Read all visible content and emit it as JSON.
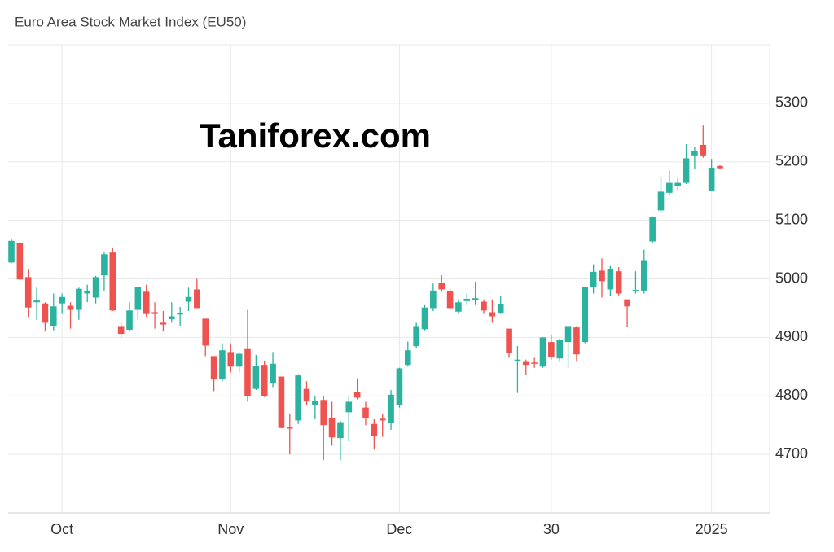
{
  "chart_data": {
    "type": "candlestick",
    "title": "Euro Area Stock Market Index (EU50)",
    "annotation": "Taniforex.com",
    "categories": [
      null,
      null,
      null,
      null,
      null,
      null,
      "Oct",
      null,
      null,
      null,
      null,
      null,
      null,
      null,
      null,
      null,
      null,
      null,
      null,
      null,
      null,
      null,
      null,
      null,
      null,
      null,
      "Nov",
      null,
      null,
      null,
      null,
      null,
      null,
      null,
      null,
      null,
      null,
      null,
      null,
      null,
      null,
      null,
      null,
      null,
      null,
      null,
      "Dec",
      null,
      null,
      null,
      null,
      null,
      null,
      null,
      null,
      null,
      null,
      null,
      null,
      null,
      null,
      null,
      null,
      null,
      "30",
      null,
      null,
      null,
      null,
      null,
      null,
      null,
      null,
      null,
      null,
      null,
      null,
      null,
      null,
      null,
      null,
      null,
      null,
      "2025",
      null
    ],
    "open": [
      5028,
      5061,
      5003,
      4960,
      4958,
      4920,
      4958,
      4954,
      4947,
      4975,
      4968,
      5006,
      5045,
      4918,
      4913,
      4947,
      4978,
      4943,
      4925,
      4931,
      4939,
      4961,
      4982,
      4932,
      4868,
      4828,
      4875,
      4850,
      4880,
      4812,
      4853,
      4822,
      4833,
      4746,
      4758,
      4812,
      4785,
      4793,
      4762,
      4728,
      4772,
      4806,
      4780,
      4752,
      4761,
      4753,
      4784,
      4853,
      4885,
      4914,
      4950,
      4993,
      4979,
      4944,
      4962,
      4964,
      4961,
      4943,
      4942,
      4915,
      4860,
      4858,
      4857,
      4850,
      4892,
      4864,
      4892,
      4917,
      4892,
      4986,
      5014,
      4982,
      5013,
      4965,
      4979,
      4980,
      5064,
      5117,
      5147,
      5158,
      5164,
      5211,
      5229,
      5151,
      5193
    ],
    "high": [
      5068,
      5063,
      5017,
      4985,
      4960,
      4975,
      4975,
      4960,
      4985,
      4990,
      5005,
      5045,
      5053,
      4925,
      4960,
      4986,
      4990,
      4960,
      4945,
      4960,
      4952,
      4985,
      5000,
      4932,
      4868,
      4890,
      4890,
      4875,
      4947,
      4870,
      4860,
      4875,
      4833,
      4770,
      4837,
      4825,
      4800,
      4800,
      4790,
      4757,
      4800,
      4830,
      4790,
      4760,
      4770,
      4810,
      4848,
      4893,
      4925,
      4955,
      4992,
      5006,
      4983,
      4965,
      4975,
      4995,
      4965,
      4965,
      4970,
      4915,
      4885,
      4862,
      4865,
      4900,
      4905,
      4898,
      4918,
      4918,
      4986,
      5025,
      5035,
      5022,
      5020,
      4965,
      5013,
      5050,
      5107,
      5175,
      5185,
      5172,
      5230,
      5225,
      5262,
      5205,
      5194
    ],
    "low": [
      5027,
      4998,
      4935,
      4930,
      4910,
      4912,
      4940,
      4915,
      4930,
      4960,
      4958,
      4980,
      4945,
      4900,
      4910,
      4930,
      4935,
      4915,
      4910,
      4925,
      4920,
      4945,
      4950,
      4868,
      4808,
      4825,
      4840,
      4840,
      4790,
      4810,
      4798,
      4815,
      4745,
      4700,
      4752,
      4785,
      4760,
      4690,
      4715,
      4690,
      4722,
      4794,
      4750,
      4708,
      4730,
      4742,
      4780,
      4850,
      4882,
      4912,
      4945,
      4978,
      4948,
      4940,
      4955,
      4955,
      4940,
      4925,
      4940,
      4865,
      4805,
      4835,
      4848,
      4848,
      4862,
      4858,
      4848,
      4860,
      4890,
      4975,
      4968,
      4970,
      4972,
      4917,
      4975,
      4975,
      5062,
      5112,
      5142,
      5152,
      5162,
      5188,
      5207,
      5150,
      5188
    ],
    "close": [
      5065,
      4999,
      4951,
      4963,
      4925,
      4953,
      4969,
      4947,
      4983,
      4980,
      5003,
      5042,
      4946,
      4906,
      4946,
      4986,
      4940,
      4940,
      4922,
      4936,
      4942,
      4969,
      4950,
      4886,
      4828,
      4878,
      4850,
      4872,
      4800,
      4851,
      4800,
      4855,
      4745,
      4744,
      4835,
      4792,
      4791,
      4750,
      4729,
      4755,
      4790,
      4797,
      4762,
      4732,
      4758,
      4802,
      4847,
      4878,
      4918,
      4951,
      4980,
      4982,
      4950,
      4960,
      4966,
      4967,
      4946,
      4936,
      4957,
      4874,
      4862,
      4853,
      4855,
      4900,
      4867,
      4895,
      4918,
      4871,
      4986,
      5012,
      4996,
      5017,
      4975,
      4953,
      4981,
      5032,
      5105,
      5149,
      5164,
      5164,
      5206,
      5218,
      5211,
      5190,
      5189
    ],
    "up_color": "#2bb3a0",
    "down_color": "#ef5350",
    "ylim": [
      4600,
      5400
    ],
    "yticks": [
      4700,
      4800,
      4900,
      5000,
      5100,
      5200,
      5300
    ],
    "grid": true
  }
}
